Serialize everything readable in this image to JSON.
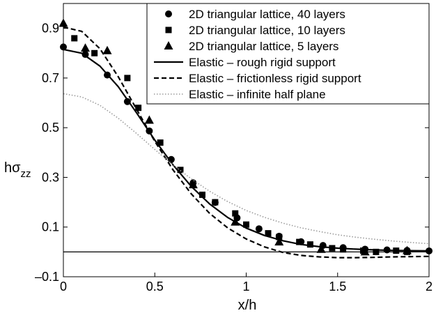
{
  "chart_data": {
    "type": "line",
    "xlabel": "x/h",
    "ylabel_main": "hσ",
    "ylabel_sub": "zz",
    "xlim": [
      0,
      2
    ],
    "ylim": [
      -0.1,
      1.0
    ],
    "xticks": [
      0,
      0.5,
      1,
      1.5,
      2
    ],
    "xtick_labels": [
      "0",
      "0.5",
      "1",
      "1.5",
      "2"
    ],
    "yticks": [
      -0.1,
      0.1,
      0.3,
      0.5,
      0.7,
      0.9
    ],
    "ytick_labels": [
      "–0.1",
      "0.1",
      "0.3",
      "0.5",
      "0.7",
      "0.9"
    ],
    "grid": false,
    "legend_position": "top-right",
    "reference_line_y": 0,
    "series": [
      {
        "name": "2D triangular lattice, 40 layers",
        "kind": "scatter",
        "marker": "circle",
        "color": "#000000",
        "x": [
          0,
          0.12,
          0.24,
          0.35,
          0.47,
          0.59,
          0.71,
          0.83,
          0.95,
          1.07,
          1.18,
          1.3,
          1.42,
          1.53,
          1.65,
          1.77,
          1.88,
          2.0
        ],
        "y": [
          0.825,
          0.795,
          0.712,
          0.605,
          0.487,
          0.372,
          0.278,
          0.199,
          0.137,
          0.093,
          0.063,
          0.041,
          0.026,
          0.017,
          0.011,
          0.008,
          0.006,
          0.004
        ]
      },
      {
        "name": "2D triangular lattice, 10 layers",
        "kind": "scatter",
        "marker": "square",
        "color": "#000000",
        "x": [
          0.06,
          0.17,
          0.35,
          0.41,
          0.53,
          0.64,
          0.76,
          0.83,
          0.94,
          1.0,
          1.12,
          1.18,
          1.29,
          1.35,
          1.47,
          1.53,
          1.64,
          1.71,
          1.82,
          1.88
        ],
        "y": [
          0.86,
          0.8,
          0.7,
          0.58,
          0.44,
          0.33,
          0.23,
          0.2,
          0.155,
          0.11,
          0.075,
          0.06,
          0.04,
          0.03,
          0.015,
          0.01,
          0.005,
          0.0,
          0.005,
          0.0
        ]
      },
      {
        "name": "2D triangular lattice, 5 layers",
        "kind": "scatter",
        "marker": "triangle",
        "color": "#000000",
        "x": [
          0.0,
          0.12,
          0.24,
          0.47,
          0.71,
          0.94,
          1.18,
          1.41,
          1.65,
          1.88
        ],
        "y": [
          0.92,
          0.82,
          0.81,
          0.53,
          0.27,
          0.12,
          0.04,
          0.01,
          0.0,
          0.005
        ]
      },
      {
        "name": "Elastic – rough rigid support",
        "kind": "line",
        "dash": "solid",
        "color": "#000000",
        "x": [
          0,
          0.1,
          0.2,
          0.3,
          0.4,
          0.5,
          0.6,
          0.7,
          0.8,
          0.9,
          1.0,
          1.1,
          1.2,
          1.3,
          1.4,
          1.5,
          1.6,
          1.7,
          1.8,
          1.9,
          2.0
        ],
        "y": [
          0.815,
          0.8,
          0.748,
          0.665,
          0.56,
          0.45,
          0.35,
          0.263,
          0.193,
          0.138,
          0.096,
          0.066,
          0.045,
          0.03,
          0.021,
          0.015,
          0.011,
          0.008,
          0.006,
          0.005,
          0.004
        ]
      },
      {
        "name": "Elastic – frictionless rigid support",
        "kind": "line",
        "dash": "dashed",
        "color": "#000000",
        "x": [
          0,
          0.1,
          0.2,
          0.3,
          0.4,
          0.5,
          0.6,
          0.7,
          0.8,
          0.9,
          1.0,
          1.1,
          1.2,
          1.3,
          1.4,
          1.5,
          1.6,
          1.7,
          1.8,
          1.9,
          2.0
        ],
        "y": [
          0.905,
          0.888,
          0.818,
          0.705,
          0.575,
          0.445,
          0.33,
          0.233,
          0.155,
          0.096,
          0.052,
          0.02,
          -0.002,
          -0.014,
          -0.02,
          -0.023,
          -0.023,
          -0.022,
          -0.02,
          -0.019,
          -0.018
        ]
      },
      {
        "name": "Elastic – infinite half plane",
        "kind": "line",
        "dash": "dotted",
        "color": "#9a9a9a",
        "x": [
          0,
          0.1,
          0.2,
          0.3,
          0.4,
          0.5,
          0.6,
          0.7,
          0.8,
          0.9,
          1.0,
          1.1,
          1.2,
          1.3,
          1.4,
          1.5,
          1.6,
          1.7,
          1.8,
          1.9,
          2.0
        ],
        "y": [
          0.637,
          0.624,
          0.59,
          0.538,
          0.477,
          0.412,
          0.35,
          0.294,
          0.244,
          0.202,
          0.167,
          0.139,
          0.116,
          0.097,
          0.082,
          0.069,
          0.059,
          0.051,
          0.044,
          0.038,
          0.033
        ]
      }
    ]
  }
}
